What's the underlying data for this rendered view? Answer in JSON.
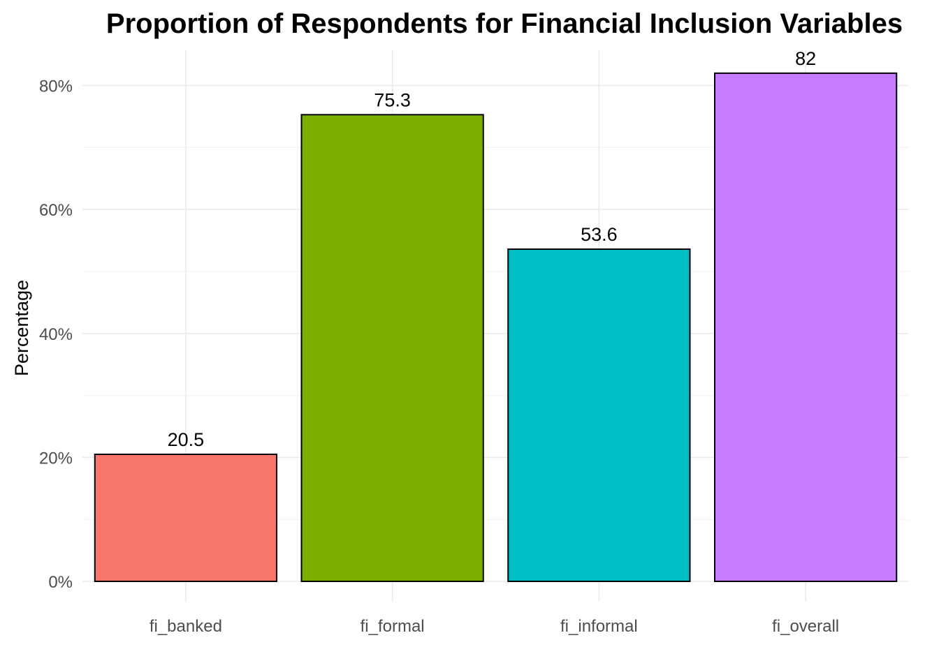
{
  "chart_data": {
    "type": "bar",
    "title": "Proportion of Respondents for Financial Inclusion Variables",
    "xlabel": "",
    "ylabel": "Percentage",
    "categories": [
      "fi_banked",
      "fi_formal",
      "fi_informal",
      "fi_overall"
    ],
    "values": [
      20.5,
      75.3,
      53.6,
      82
    ],
    "value_labels": [
      "20.5",
      "75.3",
      "53.6",
      "82"
    ],
    "colors": [
      "#F8766D",
      "#7CAE00",
      "#00BFC4",
      "#C77CFF"
    ],
    "ylim": [
      0,
      86
    ],
    "y_ticks": [
      0,
      20,
      40,
      60,
      80
    ],
    "y_tick_labels": [
      "0%",
      "20%",
      "40%",
      "60%",
      "80%"
    ],
    "grid": true,
    "legend": "none"
  }
}
